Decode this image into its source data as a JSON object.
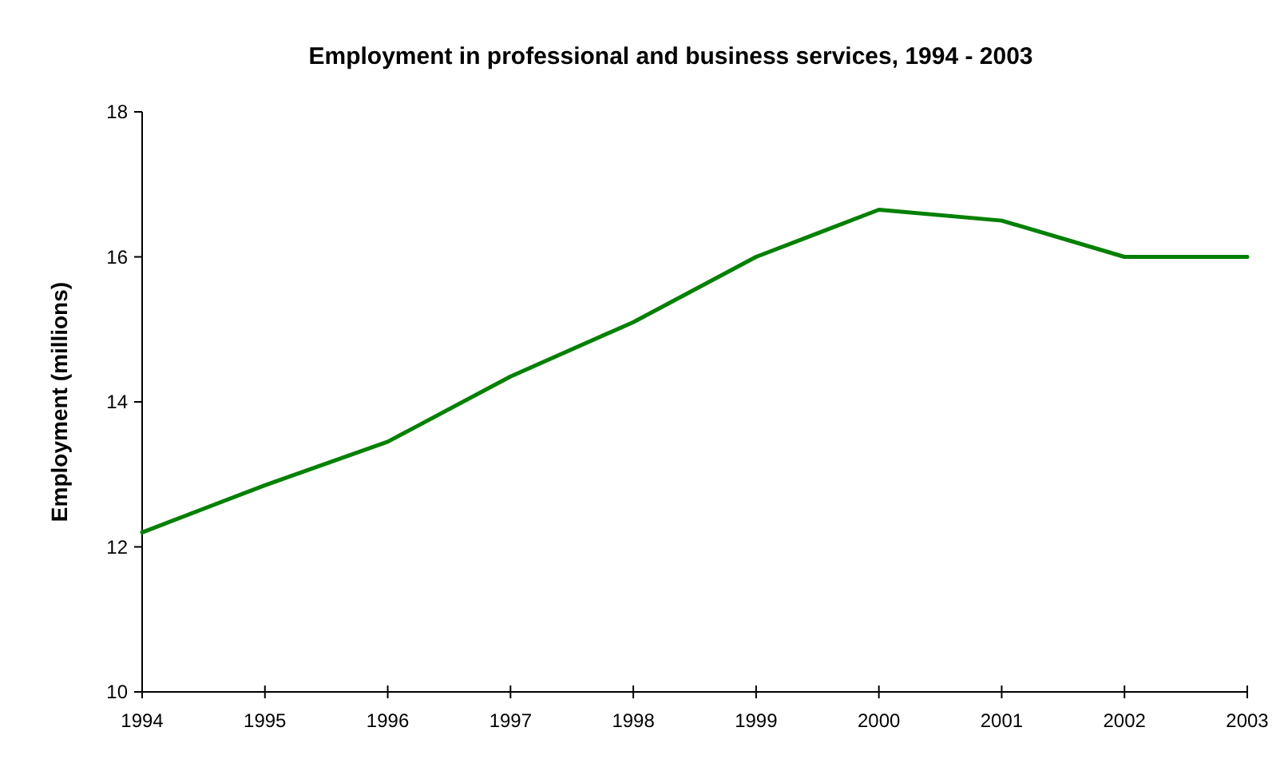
{
  "chart_data": {
    "type": "line",
    "title": "Employment in professional and business services, 1994 - 2003",
    "ylabel": "Employment (millions)",
    "x": [
      1994,
      1995,
      1996,
      1997,
      1998,
      1999,
      2000,
      2001,
      2002,
      2003
    ],
    "series": [
      {
        "color": "#008000",
        "values": [
          12.2,
          12.85,
          13.45,
          14.35,
          15.1,
          16.0,
          16.65,
          16.5,
          16.0,
          16.0
        ]
      }
    ],
    "xlim": [
      1994,
      2003
    ],
    "xticks": [
      1994,
      1995,
      1996,
      1997,
      1998,
      1999,
      2000,
      2001,
      2002,
      2003
    ],
    "ylim": [
      10,
      18
    ],
    "yticks": [
      10,
      12,
      14,
      16,
      18
    ],
    "grid": false,
    "marker": "none",
    "line_style": "solid"
  }
}
